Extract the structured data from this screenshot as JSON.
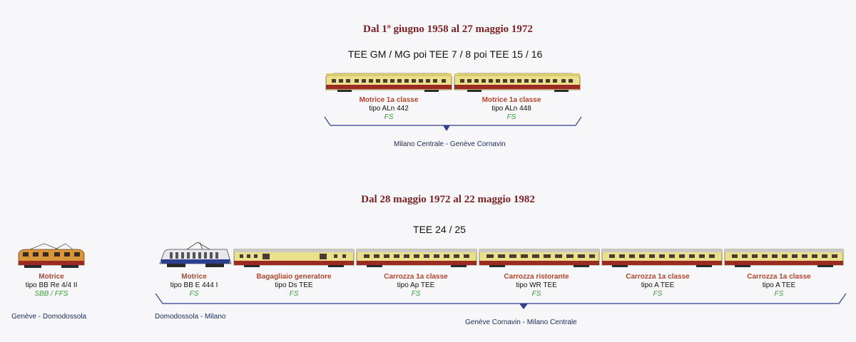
{
  "period1": {
    "title": "Dal 1º giugno 1958 al 27 maggio 1972",
    "train": "TEE GM / MG  poi  TEE 7 / 8  poi  TEE 15 / 16",
    "units": [
      {
        "role": "Motrice 1a classe",
        "type": "tipo ALn 442",
        "owner": "FS"
      },
      {
        "role": "Motrice 1a classe",
        "type": "tipo ALn 448",
        "owner": "FS"
      }
    ],
    "route": "Milano Centrale - Genève Cornavin"
  },
  "period2": {
    "title": "Dal 28 maggio 1972 al 22 maggio 1982",
    "train": "TEE 24 / 25",
    "loco_ch": {
      "role": "Motrice",
      "type": "tipo BB Re 4/4 II",
      "owner": "SBB / FFS",
      "route": "Genève - Domodossola"
    },
    "loco_it": {
      "role": "Motrice",
      "type": "tipo BB E 444 I",
      "owner": "FS",
      "route": "Domodossola - Milano"
    },
    "cars": [
      {
        "role": "Bagagliaio generatore",
        "type": "tipo Ds TEE",
        "owner": "FS"
      },
      {
        "role": "Carrozza 1a classe",
        "type": "tipo Ap TEE",
        "owner": "FS"
      },
      {
        "role": "Carrozza ristorante",
        "type": "tipo WR TEE",
        "owner": "FS"
      },
      {
        "role": "Carrozza 1a classe",
        "type": "tipo A TEE",
        "owner": "FS"
      },
      {
        "role": "Carrozza 1a classe",
        "type": "tipo A TEE",
        "owner": "FS"
      }
    ],
    "route": "Genève Cornavin - Milano Centrale"
  },
  "colors": {
    "tee_cream": "#eadf8a",
    "tee_red": "#9a2a22",
    "roof_grey": "#c9c9c9",
    "bracket_blue": "#2e3f8f",
    "label_red": "#b0452d",
    "owner_green": "#3f9a3f"
  }
}
